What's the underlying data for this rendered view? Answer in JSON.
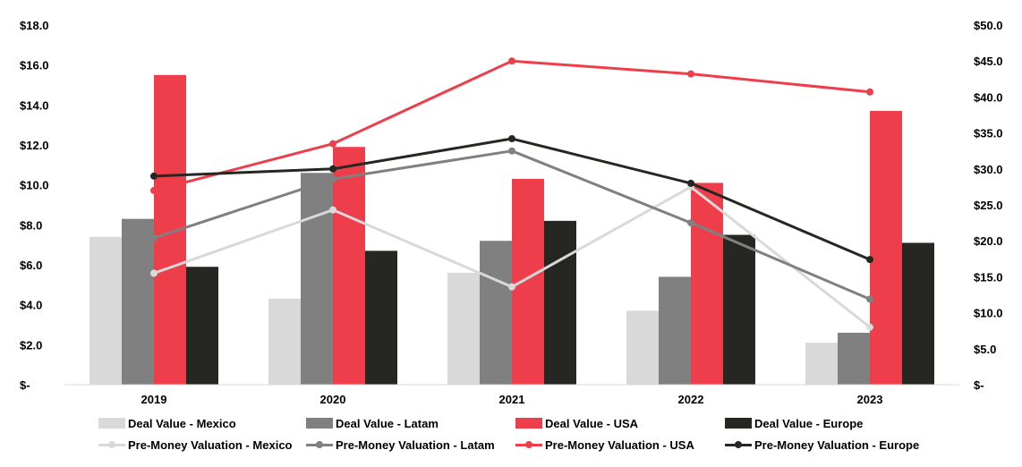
{
  "chart_data": {
    "type": "bar+line",
    "categories": [
      "2019",
      "2020",
      "2021",
      "2022",
      "2023"
    ],
    "y_left": {
      "ticks": [
        "$-",
        "$2.0",
        "$4.0",
        "$6.0",
        "$8.0",
        "$10.0",
        "$12.0",
        "$14.0",
        "$16.0",
        "$18.0"
      ],
      "range": [
        0,
        18
      ]
    },
    "y_right": {
      "ticks": [
        "$-",
        "$5.0",
        "$10.0",
        "$15.0",
        "$20.0",
        "$25.0",
        "$30.0",
        "$35.0",
        "$40.0",
        "$45.0",
        "$50.0"
      ],
      "range": [
        0,
        50
      ]
    },
    "bar_series": [
      {
        "name": "Deal Value - Mexico",
        "color": "#d9d9d9",
        "values": [
          7.4,
          4.3,
          5.6,
          3.7,
          2.1
        ]
      },
      {
        "name": "Deal Value - Latam",
        "color": "#808080",
        "values": [
          8.3,
          10.6,
          7.2,
          5.4,
          2.6
        ]
      },
      {
        "name": "Deal Value - USA",
        "color": "#ee3e4b",
        "values": [
          15.5,
          11.9,
          10.3,
          10.1,
          13.7
        ]
      },
      {
        "name": "Deal Value - Europe",
        "color": "#262622",
        "values": [
          5.9,
          6.7,
          8.2,
          7.5,
          7.1
        ]
      }
    ],
    "line_series": [
      {
        "name": "Pre-Money Valuation - Mexico",
        "color": "#d9d9d9",
        "values": [
          15.5,
          24.3,
          13.6,
          27.5,
          8.0
        ]
      },
      {
        "name": "Pre-Money Valuation - Latam",
        "color": "#808080",
        "values": [
          20.4,
          28.6,
          32.5,
          22.5,
          11.9
        ]
      },
      {
        "name": "Pre-Money Valuation - USA",
        "color": "#ee3e4b",
        "values": [
          27.0,
          33.5,
          45.0,
          43.2,
          40.7
        ]
      },
      {
        "name": "Pre-Money Valuation - Europe",
        "color": "#262622",
        "values": [
          29.0,
          30.0,
          34.2,
          28.0,
          17.4
        ]
      }
    ],
    "grid": false,
    "legend_position": "bottom"
  }
}
